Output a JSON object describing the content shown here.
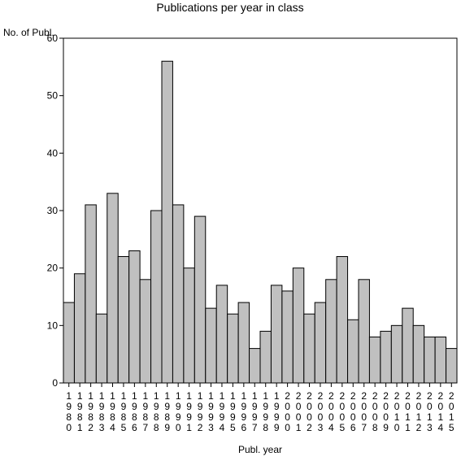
{
  "chart_data": {
    "type": "bar",
    "title": "Publications per year in class",
    "ylabel": "No. of Publ.",
    "xlabel": "Publ. year",
    "ylim": [
      0,
      60
    ],
    "yticks": [
      0,
      10,
      20,
      30,
      40,
      50,
      60
    ],
    "grid": false,
    "bar_color": "#c0c0c0",
    "categories": [
      "1980",
      "1981",
      "1982",
      "1983",
      "1984",
      "1985",
      "1986",
      "1987",
      "1988",
      "1989",
      "1990",
      "1991",
      "1992",
      "1993",
      "1994",
      "1995",
      "1996",
      "1997",
      "1998",
      "1999",
      "2000",
      "2001",
      "2002",
      "2003",
      "2004",
      "2005",
      "2006",
      "2007",
      "2008",
      "2009",
      "2010",
      "2011",
      "2012",
      "2013",
      "2014",
      "2015"
    ],
    "values": [
      14,
      19,
      31,
      12,
      33,
      22,
      23,
      18,
      30,
      56,
      31,
      20,
      29,
      13,
      17,
      12,
      14,
      6,
      9,
      17,
      16,
      20,
      12,
      14,
      18,
      22,
      11,
      18,
      8,
      9,
      10,
      13,
      10,
      8,
      8,
      6
    ]
  }
}
